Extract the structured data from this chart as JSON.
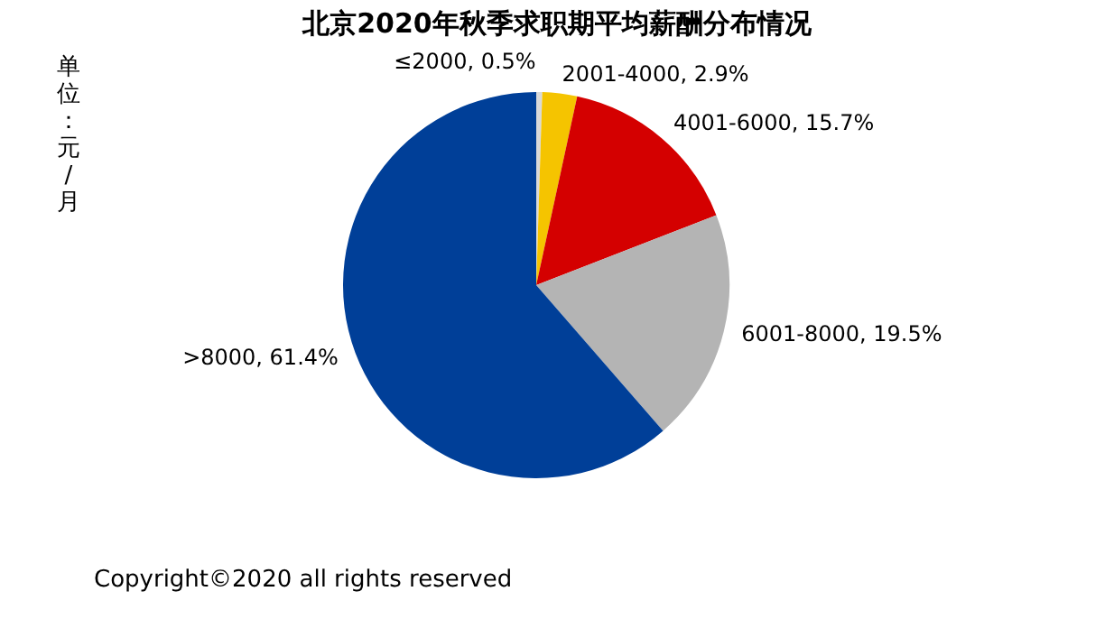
{
  "chart_data": {
    "type": "pie",
    "title": "北京2020年秋季求职期平均薪酬分布情况",
    "ylabel": "单位：元/月",
    "categories": [
      "≤2000",
      "2001-4000",
      "4001-6000",
      "6001-8000",
      ">8000"
    ],
    "values": [
      0.5,
      2.9,
      15.7,
      19.5,
      61.4
    ],
    "value_labels": [
      "0.5%",
      "2.9%",
      "15.7%",
      "19.5%",
      "61.4%"
    ],
    "colors": [
      "#d9d9d9",
      "#f5c400",
      "#d40000",
      "#b4b4b4",
      "#003f98"
    ],
    "legend": false,
    "annotations": [
      "Copyright©2020 all rights reserved"
    ]
  }
}
